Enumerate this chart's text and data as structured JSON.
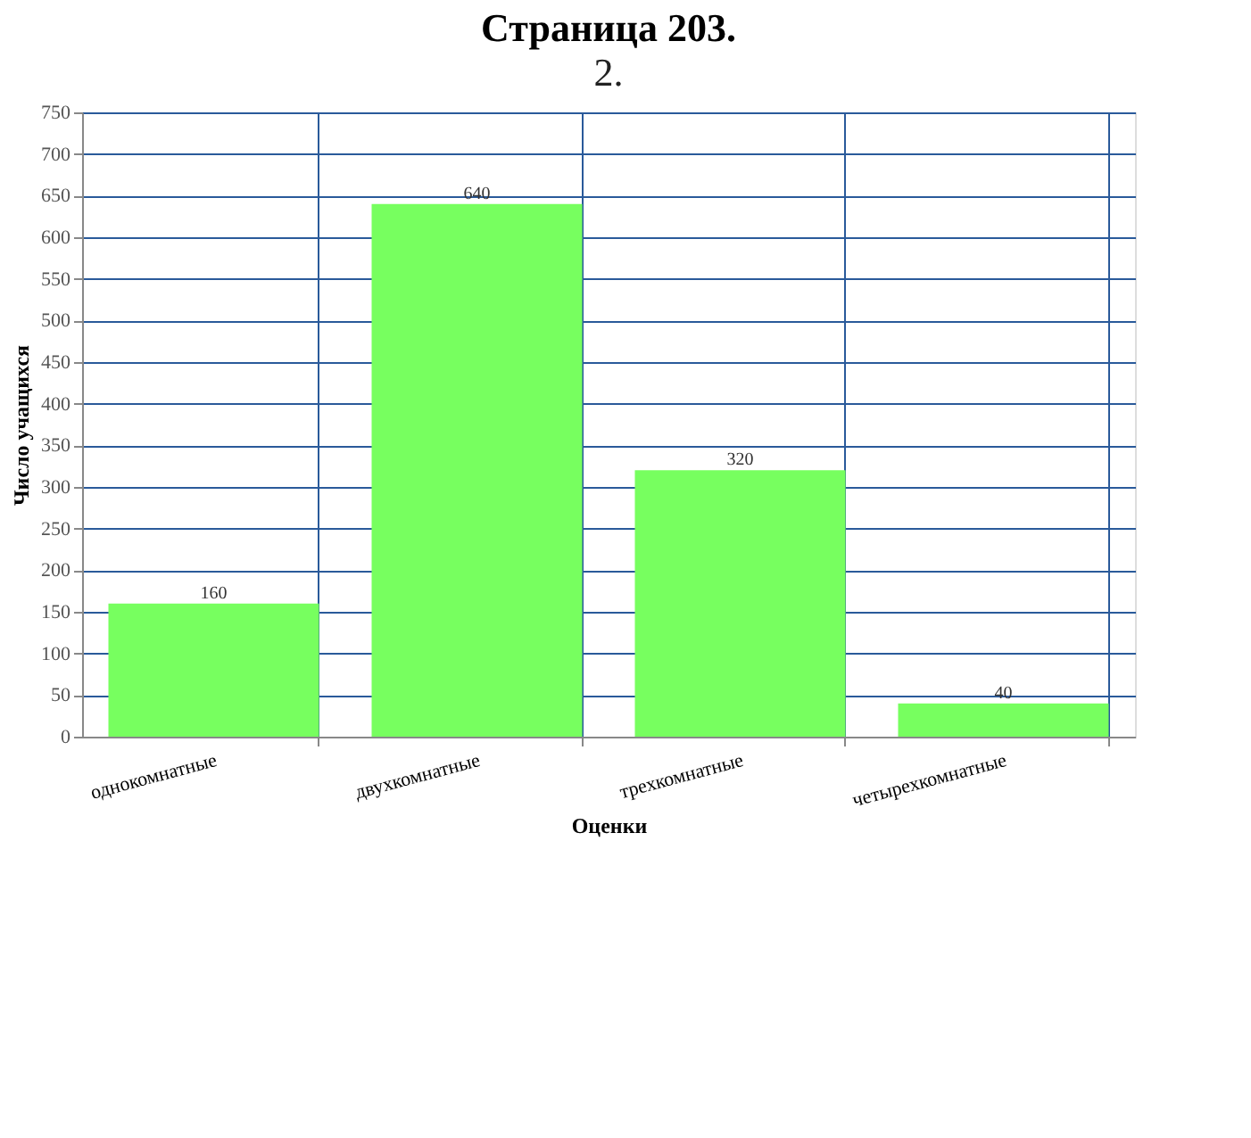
{
  "chart_data": {
    "type": "bar",
    "title": "Страница 203.",
    "annotations": [
      "2."
    ],
    "xlabel": "Оценки",
    "ylabel": "Число учащихся",
    "categories": [
      "однокомнатные",
      "двухкомнатные",
      "трехкомнатные",
      "четырехкомнатные"
    ],
    "values": [
      160,
      640,
      320,
      40
    ],
    "color": "#77ff5f",
    "ylim": [
      0,
      750
    ],
    "yticks": [
      0,
      50,
      100,
      150,
      200,
      250,
      300,
      350,
      400,
      450,
      500,
      550,
      600,
      650,
      700,
      750
    ],
    "grid": true,
    "data_labels": true
  }
}
